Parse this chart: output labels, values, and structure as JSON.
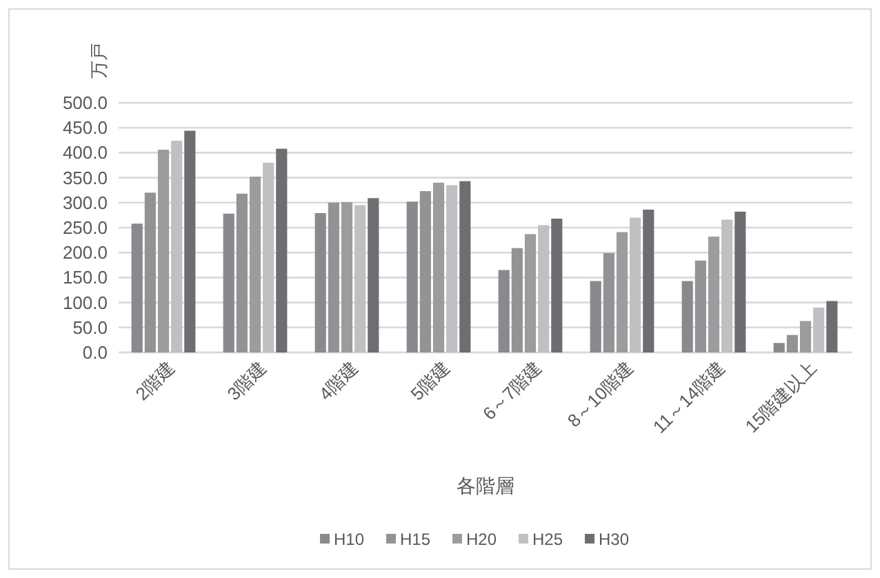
{
  "chart_data": {
    "type": "bar",
    "ylabel": "万戸",
    "xlabel": "各階層",
    "categories": [
      "2階建",
      "3階建",
      "4階建",
      "5階建",
      "6～7階建",
      "8～10階建",
      "11～14階建",
      "15階建以上"
    ],
    "series": [
      {
        "name": "H10",
        "color": "#8a8a8e",
        "values": [
          258,
          278,
          279,
          302,
          165,
          143,
          143,
          19
        ]
      },
      {
        "name": "H15",
        "color": "#939395",
        "values": [
          320,
          318,
          300,
          323,
          209,
          199,
          184,
          35
        ]
      },
      {
        "name": "H20",
        "color": "#9c9c9e",
        "values": [
          406,
          352,
          301,
          340,
          237,
          241,
          232,
          63
        ]
      },
      {
        "name": "H25",
        "color": "#c0c0c2",
        "values": [
          424,
          380,
          295,
          335,
          255,
          270,
          266,
          90
        ]
      },
      {
        "name": "H30",
        "color": "#6e6e72",
        "values": [
          444,
          408,
          309,
          343,
          268,
          286,
          282,
          103
        ]
      }
    ],
    "ylim": [
      0,
      500
    ],
    "yticks": [
      {
        "value": 0,
        "label": "0.0"
      },
      {
        "value": 50,
        "label": "50.0"
      },
      {
        "value": 100,
        "label": "100.0"
      },
      {
        "value": 150,
        "label": "150.0"
      },
      {
        "value": 200,
        "label": "200.0"
      },
      {
        "value": 250,
        "label": "250.0"
      },
      {
        "value": 300,
        "label": "300.0"
      },
      {
        "value": 350,
        "label": "350.0"
      },
      {
        "value": 400,
        "label": "400.0"
      },
      {
        "value": 450,
        "label": "450.0"
      },
      {
        "value": 500,
        "label": "500.0"
      }
    ],
    "grid": "y",
    "legend": "bottom"
  }
}
